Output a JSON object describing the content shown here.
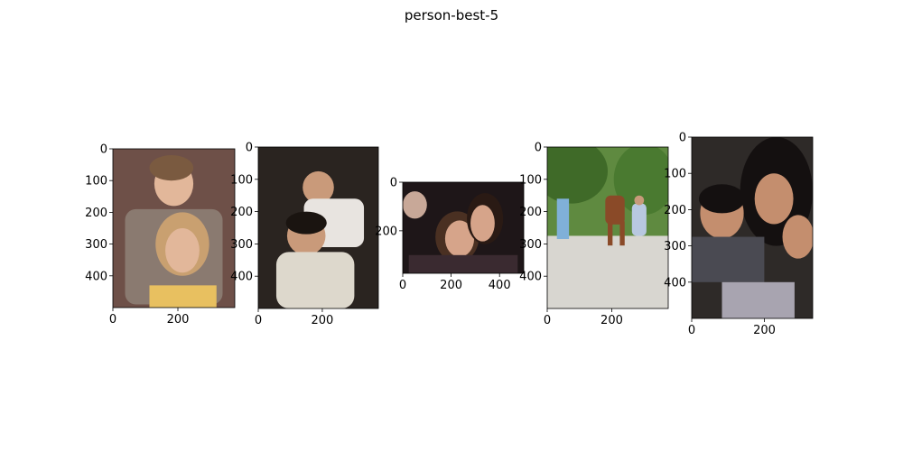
{
  "figure": {
    "title": "person-best-5"
  },
  "chart_data": [
    {
      "type": "image",
      "image_width": 375,
      "image_height": 500,
      "xticks": [
        0,
        200
      ],
      "yticks": [
        0,
        100,
        200,
        300,
        400
      ],
      "scene": "Two young children, an older boy in a striped sweater behind a blonde girl",
      "palette": {
        "bg": "#6e5048",
        "skin": "#e2b79a",
        "hair": "#c9a070",
        "cloth": "#8a7a70",
        "accent": "#e8c060"
      }
    },
    {
      "type": "image",
      "image_width": 375,
      "image_height": 500,
      "xticks": [
        0,
        200
      ],
      "yticks": [
        0,
        100,
        200,
        300,
        400
      ],
      "scene": "Two smiling women posing together in a dim room",
      "palette": {
        "bg": "#2a2420",
        "skin": "#c99a7a",
        "hair": "#1a1410",
        "cloth": "#ddd8cc",
        "accent": "#5a4a3a"
      }
    },
    {
      "type": "image",
      "image_width": 500,
      "image_height": 375,
      "xticks": [
        0,
        200,
        400
      ],
      "yticks": [
        0,
        200
      ],
      "scene": "Group of laughing women at a night party",
      "palette": {
        "bg": "#1e1618",
        "skin": "#d6a48a",
        "hair": "#4a3022",
        "cloth": "#3a2a30",
        "accent": "#8a5a5a"
      }
    },
    {
      "type": "image",
      "image_width": 375,
      "image_height": 500,
      "xticks": [
        0,
        200
      ],
      "yticks": [
        0,
        100,
        200,
        300,
        400
      ],
      "scene": "A man leading a brown horse on a sunny path with trees and people",
      "palette": {
        "bg": "#5f8a40",
        "skin": "#c89a7a",
        "hair": "#3a2a20",
        "cloth": "#d8d4cc",
        "accent": "#8a4a28"
      }
    },
    {
      "type": "image",
      "image_width": 333,
      "image_height": 500,
      "xticks": [
        0,
        200
      ],
      "yticks": [
        0,
        100,
        200,
        300,
        400
      ],
      "scene": "A woman and two children looking down at a book",
      "palette": {
        "bg": "#2e2a28",
        "skin": "#c48e6e",
        "hair": "#141010",
        "cloth": "#4a4a52",
        "accent": "#a8a4b0"
      }
    }
  ]
}
